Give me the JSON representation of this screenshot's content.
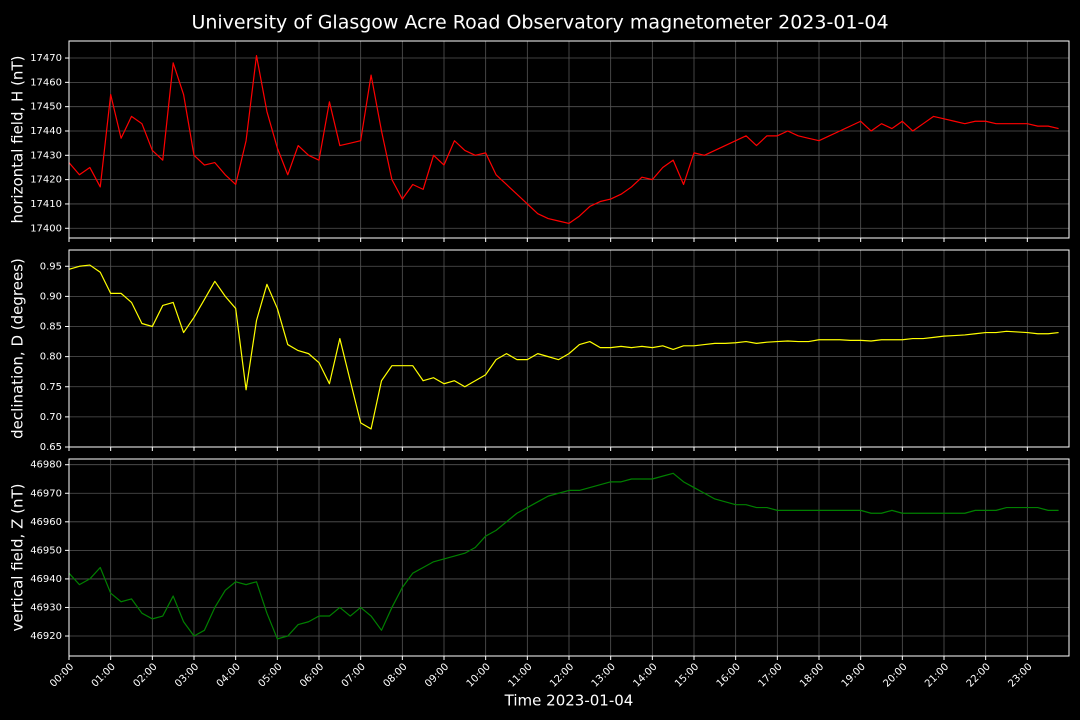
{
  "title": "University of Glasgow Acre Road Observatory magnetometer 2023-01-04",
  "chart_data": [
    {
      "type": "line",
      "ylabel": "horizontal field, H (nT)",
      "color": "#ff0000",
      "grid": true,
      "xlim": [
        "00:00",
        "24:00"
      ],
      "ylim": [
        17396,
        17477
      ],
      "yticks": [
        17400,
        17410,
        17420,
        17430,
        17440,
        17450,
        17460,
        17470
      ],
      "x": [
        "00:00",
        "00:15",
        "00:30",
        "00:45",
        "01:00",
        "01:15",
        "01:30",
        "01:45",
        "02:00",
        "02:15",
        "02:30",
        "02:45",
        "03:00",
        "03:15",
        "03:30",
        "03:45",
        "04:00",
        "04:15",
        "04:30",
        "04:45",
        "05:00",
        "05:15",
        "05:30",
        "05:45",
        "06:00",
        "06:15",
        "06:30",
        "06:45",
        "07:00",
        "07:15",
        "07:30",
        "07:45",
        "08:00",
        "08:15",
        "08:30",
        "08:45",
        "09:00",
        "09:15",
        "09:30",
        "09:45",
        "10:00",
        "10:15",
        "10:30",
        "10:45",
        "11:00",
        "11:15",
        "11:30",
        "11:45",
        "12:00",
        "12:15",
        "12:30",
        "12:45",
        "13:00",
        "13:15",
        "13:30",
        "13:45",
        "14:00",
        "14:15",
        "14:30",
        "14:45",
        "15:00",
        "15:15",
        "15:30",
        "15:45",
        "16:00",
        "16:15",
        "16:30",
        "16:45",
        "17:00",
        "17:15",
        "17:30",
        "17:45",
        "18:00",
        "18:15",
        "18:30",
        "18:45",
        "19:00",
        "19:15",
        "19:30",
        "19:45",
        "20:00",
        "20:15",
        "20:30",
        "20:45",
        "21:00",
        "21:15",
        "21:30",
        "21:45",
        "22:00",
        "22:15",
        "22:30",
        "22:45",
        "23:00",
        "23:15",
        "23:30",
        "23:45"
      ],
      "values": [
        17427,
        17422,
        17425,
        17417,
        17455,
        17437,
        17446,
        17443,
        17432,
        17428,
        17468,
        17455,
        17430,
        17426,
        17427,
        17422,
        17418,
        17436,
        17471,
        17448,
        17433,
        17422,
        17434,
        17430,
        17428,
        17452,
        17434,
        17435,
        17436,
        17463,
        17440,
        17420,
        17412,
        17418,
        17416,
        17430,
        17426,
        17436,
        17432,
        17430,
        17431,
        17422,
        17418,
        17414,
        17410,
        17406,
        17404,
        17403,
        17402,
        17405,
        17409,
        17411,
        17412,
        17414,
        17417,
        17421,
        17420,
        17425,
        17428,
        17418,
        17431,
        17430,
        17432,
        17434,
        17436,
        17438,
        17434,
        17438,
        17438,
        17440,
        17438,
        17437,
        17436,
        17438,
        17440,
        17442,
        17444,
        17440,
        17443,
        17441,
        17444,
        17440,
        17443,
        17446,
        17445,
        17444,
        17443,
        17444,
        17444,
        17443,
        17443,
        17443,
        17443,
        17442,
        17442,
        17441
      ]
    },
    {
      "type": "line",
      "ylabel": "declination, D (degrees)",
      "color": "#ffff00",
      "grid": true,
      "xlim": [
        "00:00",
        "24:00"
      ],
      "ylim": [
        0.65,
        0.977
      ],
      "yticks": [
        0.65,
        {
          "value": 0.7,
          "label": "0.70"
        },
        0.75,
        {
          "value": 0.8,
          "label": "0.80"
        },
        0.85,
        {
          "value": 0.9,
          "label": "0.90"
        },
        0.95
      ],
      "x": [
        "00:00",
        "00:15",
        "00:30",
        "00:45",
        "01:00",
        "01:15",
        "01:30",
        "01:45",
        "02:00",
        "02:15",
        "02:30",
        "02:45",
        "03:00",
        "03:15",
        "03:30",
        "03:45",
        "04:00",
        "04:15",
        "04:30",
        "04:45",
        "05:00",
        "05:15",
        "05:30",
        "05:45",
        "06:00",
        "06:15",
        "06:30",
        "06:45",
        "07:00",
        "07:15",
        "07:30",
        "07:45",
        "08:00",
        "08:15",
        "08:30",
        "08:45",
        "09:00",
        "09:15",
        "09:30",
        "09:45",
        "10:00",
        "10:15",
        "10:30",
        "10:45",
        "11:00",
        "11:15",
        "11:30",
        "11:45",
        "12:00",
        "12:15",
        "12:30",
        "12:45",
        "13:00",
        "13:15",
        "13:30",
        "13:45",
        "14:00",
        "14:15",
        "14:30",
        "14:45",
        "15:00",
        "15:15",
        "15:30",
        "15:45",
        "16:00",
        "16:15",
        "16:30",
        "16:45",
        "17:00",
        "17:15",
        "17:30",
        "17:45",
        "18:00",
        "18:15",
        "18:30",
        "18:45",
        "19:00",
        "19:15",
        "19:30",
        "19:45",
        "20:00",
        "20:15",
        "20:30",
        "20:45",
        "21:00",
        "21:15",
        "21:30",
        "21:45",
        "22:00",
        "22:15",
        "22:30",
        "22:45",
        "23:00",
        "23:15",
        "23:30",
        "23:45"
      ],
      "values": [
        0.945,
        0.95,
        0.952,
        0.94,
        0.905,
        0.905,
        0.89,
        0.855,
        0.85,
        0.885,
        0.89,
        0.84,
        0.865,
        0.895,
        0.925,
        0.9,
        0.88,
        0.745,
        0.86,
        0.92,
        0.88,
        0.82,
        0.81,
        0.805,
        0.79,
        0.755,
        0.83,
        0.76,
        0.69,
        0.68,
        0.76,
        0.785,
        0.785,
        0.785,
        0.76,
        0.765,
        0.755,
        0.76,
        0.75,
        0.76,
        0.77,
        0.795,
        0.805,
        0.795,
        0.795,
        0.805,
        0.8,
        0.795,
        0.805,
        0.82,
        0.825,
        0.815,
        0.815,
        0.817,
        0.815,
        0.817,
        0.815,
        0.818,
        0.812,
        0.818,
        0.818,
        0.82,
        0.822,
        0.822,
        0.823,
        0.825,
        0.822,
        0.824,
        0.825,
        0.826,
        0.825,
        0.825,
        0.828,
        0.828,
        0.828,
        0.827,
        0.827,
        0.826,
        0.828,
        0.828,
        0.828,
        0.83,
        0.83,
        0.832,
        0.834,
        0.835,
        0.836,
        0.838,
        0.84,
        0.84,
        0.842,
        0.841,
        0.84,
        0.838,
        0.838,
        0.84
      ]
    },
    {
      "type": "line",
      "ylabel": "vertical field, Z (nT)",
      "xlabel": "Time 2023-01-04",
      "color": "#008000",
      "grid": true,
      "xlim": [
        "00:00",
        "24:00"
      ],
      "ylim": [
        46913,
        46982
      ],
      "yticks": [
        46920,
        46930,
        46940,
        46950,
        46960,
        46970,
        46980
      ],
      "xticks": [
        "00:00",
        "01:00",
        "02:00",
        "03:00",
        "04:00",
        "05:00",
        "06:00",
        "07:00",
        "08:00",
        "09:00",
        "10:00",
        "11:00",
        "12:00",
        "13:00",
        "14:00",
        "15:00",
        "16:00",
        "17:00",
        "18:00",
        "19:00",
        "20:00",
        "21:00",
        "22:00",
        "23:00"
      ],
      "x": [
        "00:00",
        "00:15",
        "00:30",
        "00:45",
        "01:00",
        "01:15",
        "01:30",
        "01:45",
        "02:00",
        "02:15",
        "02:30",
        "02:45",
        "03:00",
        "03:15",
        "03:30",
        "03:45",
        "04:00",
        "04:15",
        "04:30",
        "04:45",
        "05:00",
        "05:15",
        "05:30",
        "05:45",
        "06:00",
        "06:15",
        "06:30",
        "06:45",
        "07:00",
        "07:15",
        "07:30",
        "07:45",
        "08:00",
        "08:15",
        "08:30",
        "08:45",
        "09:00",
        "09:15",
        "09:30",
        "09:45",
        "10:00",
        "10:15",
        "10:30",
        "10:45",
        "11:00",
        "11:15",
        "11:30",
        "11:45",
        "12:00",
        "12:15",
        "12:30",
        "12:45",
        "13:00",
        "13:15",
        "13:30",
        "13:45",
        "14:00",
        "14:15",
        "14:30",
        "14:45",
        "15:00",
        "15:15",
        "15:30",
        "15:45",
        "16:00",
        "16:15",
        "16:30",
        "16:45",
        "17:00",
        "17:15",
        "17:30",
        "17:45",
        "18:00",
        "18:15",
        "18:30",
        "18:45",
        "19:00",
        "19:15",
        "19:30",
        "19:45",
        "20:00",
        "20:15",
        "20:30",
        "20:45",
        "21:00",
        "21:15",
        "21:30",
        "21:45",
        "22:00",
        "22:15",
        "22:30",
        "22:45",
        "23:00",
        "23:15",
        "23:30",
        "23:45"
      ],
      "values": [
        46942,
        46938,
        46940,
        46944,
        46935,
        46932,
        46933,
        46928,
        46926,
        46927,
        46934,
        46925,
        46920,
        46922,
        46930,
        46936,
        46939,
        46938,
        46939,
        46928,
        46919,
        46920,
        46924,
        46925,
        46927,
        46927,
        46930,
        46927,
        46930,
        46927,
        46922,
        46930,
        46937,
        46942,
        46944,
        46946,
        46947,
        46948,
        46949,
        46951,
        46955,
        46957,
        46960,
        46963,
        46965,
        46967,
        46969,
        46970,
        46971,
        46971,
        46972,
        46973,
        46974,
        46974,
        46975,
        46975,
        46975,
        46976,
        46977,
        46974,
        46972,
        46970,
        46968,
        46967,
        46966,
        46966,
        46965,
        46965,
        46964,
        46964,
        46964,
        46964,
        46964,
        46964,
        46964,
        46964,
        46964,
        46963,
        46963,
        46964,
        46963,
        46963,
        46963,
        46963,
        46963,
        46963,
        46963,
        46964,
        46964,
        46964,
        46965,
        46965,
        46965,
        46965,
        46964,
        46964
      ]
    }
  ]
}
